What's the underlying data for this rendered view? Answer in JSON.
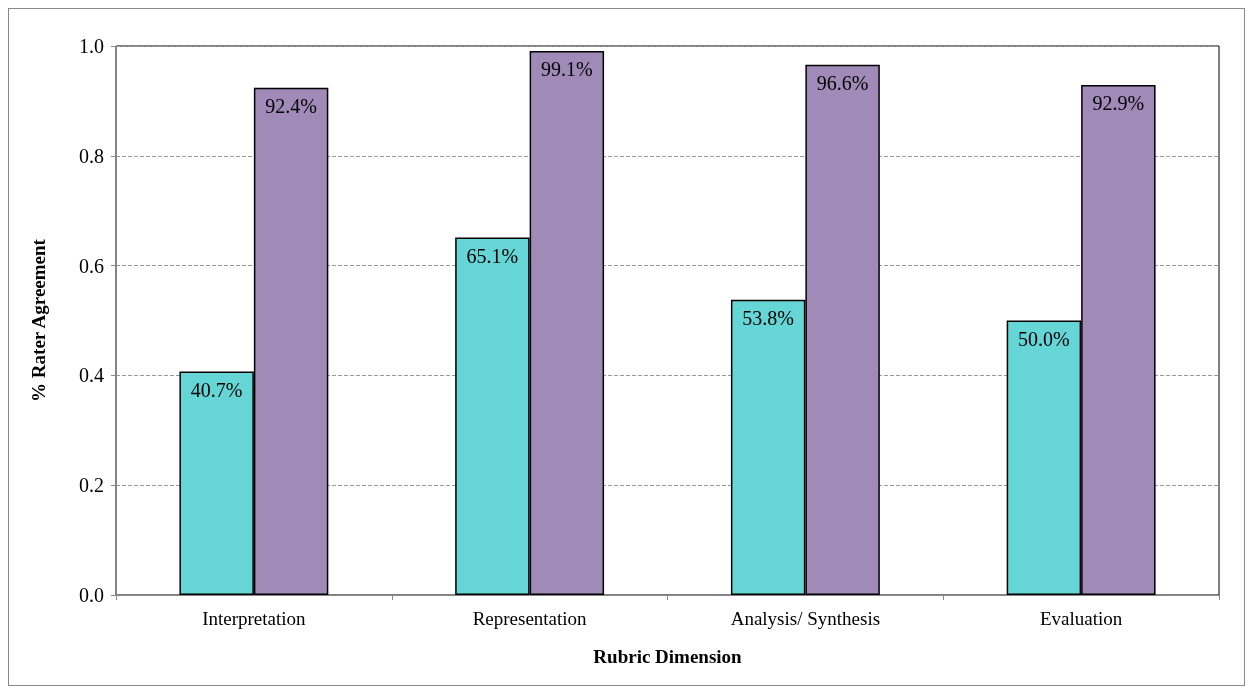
{
  "chart_data": {
    "type": "bar",
    "xlabel": "Rubric Dimension",
    "ylabel": "% Rater Agreement",
    "categories": [
      "Interpretation",
      "Representation",
      "Analysis/ Synthesis",
      "Evaluation"
    ],
    "series": [
      {
        "color": "#66d5d5",
        "values": [
          0.407,
          0.651,
          0.538,
          0.5
        ],
        "value_labels": [
          "40.7%",
          "65.1%",
          "53.8%",
          "50.0%"
        ]
      },
      {
        "color": "#a08ab8",
        "values": [
          0.924,
          0.991,
          0.966,
          0.929
        ],
        "value_labels": [
          "92.4%",
          "99.1%",
          "96.6%",
          "92.9%"
        ]
      }
    ],
    "ylim": [
      0,
      1
    ],
    "yticks": [
      {
        "value": 0,
        "label": "0.0"
      },
      {
        "value": 0.2,
        "label": "0.2"
      },
      {
        "value": 0.4,
        "label": "0.4"
      },
      {
        "value": 0.6,
        "label": "0.6"
      },
      {
        "value": 0.8,
        "label": "0.8"
      },
      {
        "value": 1,
        "label": "1.0"
      }
    ],
    "grid": "y"
  }
}
